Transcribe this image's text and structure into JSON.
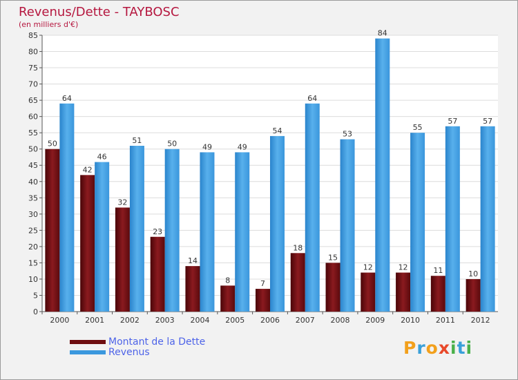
{
  "title": "Revenus/Dette - TAYBOSC",
  "subtitle": "(en milliers d'€)",
  "legend": [
    {
      "label": "Montant de la Dette",
      "color": "#6e0d10"
    },
    {
      "label": "Revenus",
      "color": "#3b98de"
    }
  ],
  "logo": {
    "p": "P",
    "r": "r",
    "o": "o",
    "x": "x",
    "i1": "i",
    "t": "t",
    "i2": "i"
  },
  "chart_data": {
    "type": "bar",
    "title": "Revenus/Dette - TAYBOSC",
    "ylabel": "(en milliers d'€)",
    "xlabel": "",
    "categories": [
      "2000",
      "2001",
      "2002",
      "2003",
      "2004",
      "2005",
      "2006",
      "2007",
      "2008",
      "2009",
      "2010",
      "2011",
      "2012"
    ],
    "series": [
      {
        "name": "Montant de la Dette",
        "color": "#6e0d10",
        "values": [
          50,
          42,
          32,
          23,
          14,
          8,
          7,
          18,
          15,
          12,
          12,
          11,
          10
        ]
      },
      {
        "name": "Revenus",
        "color": "#3b98de",
        "values": [
          64,
          46,
          51,
          50,
          49,
          49,
          54,
          64,
          53,
          84,
          55,
          57,
          57
        ]
      }
    ],
    "ylim": [
      0,
      85
    ],
    "yticks": [
      0,
      5,
      10,
      15,
      20,
      25,
      30,
      35,
      40,
      45,
      50,
      55,
      60,
      65,
      70,
      75,
      80,
      85
    ],
    "grid": true,
    "legend_position": "bottom-left"
  }
}
